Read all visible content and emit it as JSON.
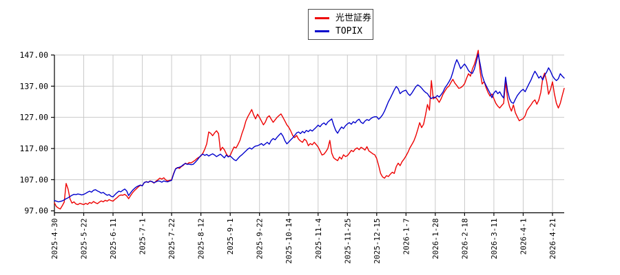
{
  "legend": {
    "position": "top-center",
    "items": [
      {
        "label": "光世証券",
        "color": "#ee0000"
      },
      {
        "label": "TOPIX",
        "color": "#0000cc"
      }
    ]
  },
  "axes": {
    "y_tick_labels": [
      "147.00",
      "137.00",
      "127.00",
      "117.00",
      "107.00",
      "97.00"
    ],
    "x_tick_labels": [
      "2025-4-30",
      "2025-5-22",
      "2025-6-11",
      "2025-7-1",
      "2025-7-22",
      "2025-8-12",
      "2025-9-1",
      "2025-9-22",
      "2025-10-14",
      "2025-11-4",
      "2025-11-25",
      "2025-12-15",
      "2026-1-7",
      "2026-1-28",
      "2026-2-18",
      "2026-3-11",
      "2026-4-1",
      "2026-4-21"
    ]
  },
  "chart_data": {
    "type": "line",
    "title": "",
    "xlabel": "",
    "ylabel": "",
    "grid": true,
    "grid_color": "#c9c9c9",
    "axis_color": "#000000",
    "background": "#ffffff",
    "legend_position": "top-center",
    "ylim": [
      97,
      147
    ],
    "y_ticks": [
      147,
      137,
      127,
      117,
      107,
      97
    ],
    "y_tick_labels": [
      "147.00",
      "137.00",
      "127.00",
      "117.00",
      "107.00",
      "97.00"
    ],
    "x_tick_labels": [
      "2025-4-30",
      "2025-5-22",
      "2025-6-11",
      "2025-7-1",
      "2025-7-22",
      "2025-8-12",
      "2025-9-1",
      "2025-9-22",
      "2025-10-14",
      "2025-11-4",
      "2025-11-25",
      "2025-12-15",
      "2026-1-7",
      "2026-1-28",
      "2026-2-18",
      "2026-3-11",
      "2026-4-1",
      "2026-4-21"
    ],
    "x_tick_day_indices": [
      0,
      15,
      30,
      45,
      60,
      75,
      90,
      105,
      120,
      135,
      150,
      165,
      180,
      195,
      210,
      225,
      240,
      255
    ],
    "sampling": "daily close, 262 trading days, 2025-4-30 through 2026-4-30 (values indexed to 100 at start)",
    "series": [
      {
        "name": "光世証券",
        "color": "#ee0000",
        "values": [
          99.6,
          98.4,
          97.9,
          97.6,
          98.6,
          99.8,
          105.8,
          104.0,
          100.8,
          99.5,
          99.9,
          99.2,
          99.0,
          99.4,
          99.2,
          99.0,
          99.4,
          99.1,
          99.7,
          99.4,
          100.0,
          99.6,
          99.3,
          99.8,
          100.2,
          99.9,
          100.4,
          100.1,
          100.6,
          100.3,
          100.1,
          100.7,
          101.2,
          101.8,
          102.1,
          102.0,
          102.3,
          101.8,
          100.9,
          101.9,
          102.8,
          103.5,
          104.1,
          104.7,
          105.2,
          105.1,
          106.0,
          106.4,
          106.1,
          106.6,
          106.3,
          105.9,
          106.5,
          107.0,
          107.5,
          107.2,
          107.6,
          106.9,
          106.6,
          106.8,
          107.0,
          109.0,
          110.5,
          110.9,
          110.6,
          111.2,
          111.6,
          112.3,
          112.0,
          112.5,
          112.4,
          112.8,
          113.2,
          113.8,
          114.2,
          114.6,
          115.5,
          116.8,
          118.5,
          122.3,
          121.9,
          121.1,
          122.0,
          122.7,
          121.8,
          116.3,
          117.4,
          116.6,
          115.3,
          114.4,
          114.8,
          116.2,
          117.5,
          117.2,
          118.3,
          119.6,
          121.8,
          123.5,
          125.8,
          127.2,
          128.3,
          129.5,
          127.8,
          126.5,
          128.0,
          127.0,
          125.8,
          124.6,
          125.5,
          127.0,
          127.5,
          126.4,
          125.4,
          126.2,
          127.0,
          127.6,
          128.1,
          127.0,
          125.8,
          124.6,
          123.8,
          122.6,
          121.2,
          120.5,
          121.2,
          120.0,
          119.4,
          119.0,
          120.0,
          119.5,
          117.9,
          118.6,
          118.2,
          119.0,
          118.3,
          117.5,
          116.2,
          114.9,
          115.2,
          116.0,
          117.0,
          119.6,
          115.5,
          114.0,
          113.5,
          113.1,
          114.3,
          113.6,
          115.0,
          114.4,
          114.7,
          115.5,
          116.4,
          116.0,
          116.8,
          117.2,
          116.6,
          117.4,
          117.0,
          116.5,
          117.6,
          116.2,
          115.8,
          115.3,
          115.0,
          113.8,
          111.5,
          109.0,
          107.9,
          107.5,
          108.3,
          108.0,
          108.8,
          109.4,
          109.0,
          111.2,
          112.3,
          111.5,
          112.8,
          113.6,
          114.6,
          115.8,
          117.2,
          118.3,
          119.4,
          121.0,
          123.1,
          125.3,
          123.7,
          124.8,
          127.8,
          131.1,
          129.3,
          138.8,
          132.9,
          133.5,
          132.8,
          131.8,
          133.0,
          134.5,
          135.5,
          136.5,
          137.0,
          138.2,
          139.2,
          138.0,
          137.2,
          136.3,
          136.5,
          137.0,
          137.8,
          139.5,
          141.0,
          140.2,
          142.5,
          144.0,
          146.0,
          148.5,
          141.5,
          137.7,
          138.5,
          136.5,
          135.0,
          133.8,
          134.5,
          133.0,
          131.5,
          130.6,
          130.0,
          130.8,
          131.5,
          138.4,
          133.0,
          130.5,
          129.0,
          131.0,
          128.5,
          127.1,
          125.9,
          126.3,
          126.6,
          127.5,
          129.3,
          130.2,
          131.0,
          132.0,
          132.6,
          131.2,
          132.5,
          135.0,
          139.5,
          141.2,
          138.5,
          134.4,
          136.0,
          138.4,
          134.5,
          131.5,
          130.0,
          131.5,
          134.0,
          136.3
        ]
      },
      {
        "name": "TOPIX",
        "color": "#0000cc",
        "values": [
          100.3,
          100.1,
          99.9,
          100.0,
          100.2,
          100.5,
          100.9,
          101.2,
          101.6,
          102.0,
          102.3,
          102.2,
          102.4,
          102.3,
          102.1,
          102.3,
          102.6,
          103.0,
          103.3,
          103.0,
          103.6,
          103.8,
          103.4,
          103.1,
          102.7,
          102.9,
          102.4,
          102.0,
          102.2,
          101.7,
          101.5,
          102.2,
          102.8,
          103.3,
          103.1,
          103.6,
          104.0,
          103.4,
          101.9,
          102.8,
          103.6,
          104.2,
          104.7,
          105.0,
          105.3,
          105.0,
          106.1,
          106.3,
          106.2,
          106.5,
          106.4,
          106.0,
          106.3,
          106.6,
          106.5,
          106.2,
          106.6,
          106.4,
          106.3,
          106.6,
          106.8,
          108.8,
          110.4,
          110.8,
          111.0,
          111.3,
          111.8,
          112.2,
          111.9,
          112.0,
          111.8,
          111.9,
          112.5,
          113.2,
          114.0,
          114.8,
          115.2,
          114.8,
          115.1,
          114.6,
          115.0,
          115.3,
          114.9,
          114.4,
          114.8,
          115.2,
          114.6,
          114.0,
          114.9,
          114.3,
          114.6,
          114.0,
          113.4,
          113.1,
          113.8,
          114.5,
          115.0,
          115.6,
          116.2,
          116.8,
          117.2,
          116.8,
          117.4,
          117.8,
          117.9,
          118.2,
          118.6,
          118.0,
          118.5,
          119.0,
          118.4,
          119.6,
          120.2,
          119.8,
          120.6,
          121.3,
          121.9,
          121.0,
          119.5,
          118.5,
          119.1,
          119.8,
          120.4,
          121.2,
          122.0,
          122.3,
          121.8,
          122.5,
          122.0,
          122.8,
          122.4,
          123.0,
          122.6,
          123.2,
          123.8,
          124.5,
          124.0,
          124.8,
          125.2,
          124.6,
          125.5,
          126.0,
          126.5,
          124.5,
          122.8,
          121.9,
          123.0,
          123.9,
          123.4,
          124.3,
          124.9,
          125.3,
          124.8,
          125.6,
          125.2,
          126.0,
          126.4,
          125.4,
          125.0,
          125.8,
          126.3,
          126.0,
          126.6,
          127.0,
          127.2,
          127.2,
          126.4,
          127.0,
          127.8,
          129.0,
          130.5,
          132.0,
          133.2,
          134.5,
          135.8,
          136.9,
          136.2,
          134.6,
          135.2,
          135.5,
          135.7,
          134.6,
          134.0,
          134.8,
          135.8,
          136.8,
          137.4,
          137.0,
          136.4,
          135.6,
          135.0,
          134.6,
          133.6,
          133.0,
          133.5,
          133.3,
          134.0,
          133.5,
          134.3,
          135.2,
          136.5,
          137.4,
          138.4,
          139.6,
          141.5,
          143.8,
          145.5,
          144.2,
          142.6,
          143.4,
          144.1,
          143.2,
          142.0,
          141.4,
          141.1,
          142.5,
          144.8,
          147.3,
          144.0,
          140.5,
          138.5,
          137.2,
          136.0,
          134.8,
          133.3,
          134.8,
          135.5,
          134.6,
          135.2,
          134.0,
          133.2,
          139.9,
          135.5,
          133.0,
          131.8,
          131.5,
          132.8,
          134.0,
          134.8,
          135.5,
          136.0,
          135.2,
          136.5,
          137.8,
          139.0,
          140.5,
          141.8,
          140.8,
          139.6,
          140.2,
          139.0,
          140.5,
          141.5,
          142.9,
          141.8,
          140.3,
          139.4,
          138.8,
          139.4,
          141.0,
          140.2,
          139.6
        ]
      }
    ]
  }
}
